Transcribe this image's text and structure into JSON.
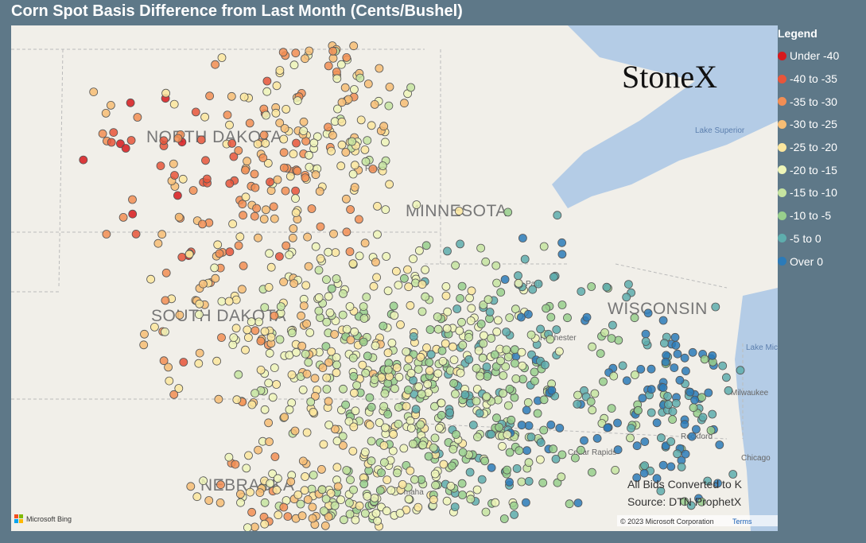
{
  "header": {
    "title": "Corn Spot Basis Difference from Last Month (Cents/Bushel)"
  },
  "legend": {
    "title": "Legend",
    "items": [
      {
        "label": "Under -40",
        "color": "#d7191c"
      },
      {
        "label": "-40 to -35",
        "color": "#e8553a"
      },
      {
        "label": "-35 to -30",
        "color": "#f28e54"
      },
      {
        "label": "-30 to -25",
        "color": "#f7bd74"
      },
      {
        "label": "-25 to -20",
        "color": "#fbe69e"
      },
      {
        "label": "-20 to -15",
        "color": "#eef5b8"
      },
      {
        "label": "-15 to -10",
        "color": "#c6e4a0"
      },
      {
        "label": "-10 to -5",
        "color": "#98cf8c"
      },
      {
        "label": "-5 to 0",
        "color": "#5eadad"
      },
      {
        "label": "Over 0",
        "color": "#2b7bb9"
      }
    ]
  },
  "map": {
    "states": [
      "NORTH DAKOTA",
      "MINNESOTA",
      "SOUTH DAKOTA",
      "WISCONSIN",
      "NEBRASKA"
    ],
    "places": [
      "Fargo",
      "Lake Superior",
      "Lake Michigan",
      "Milwaukee",
      "Rockford",
      "Chicago",
      "Omaha",
      "Rochester",
      "St. Paul",
      "Cedar Rapids"
    ],
    "logo": "StoneX",
    "notes": [
      "All Bids Converted to K",
      "Source: DTN ProphetX"
    ],
    "attribution": "Microsoft Bing",
    "copyright": "© 2023 Microsoft Corporation",
    "terms": "Terms"
  }
}
